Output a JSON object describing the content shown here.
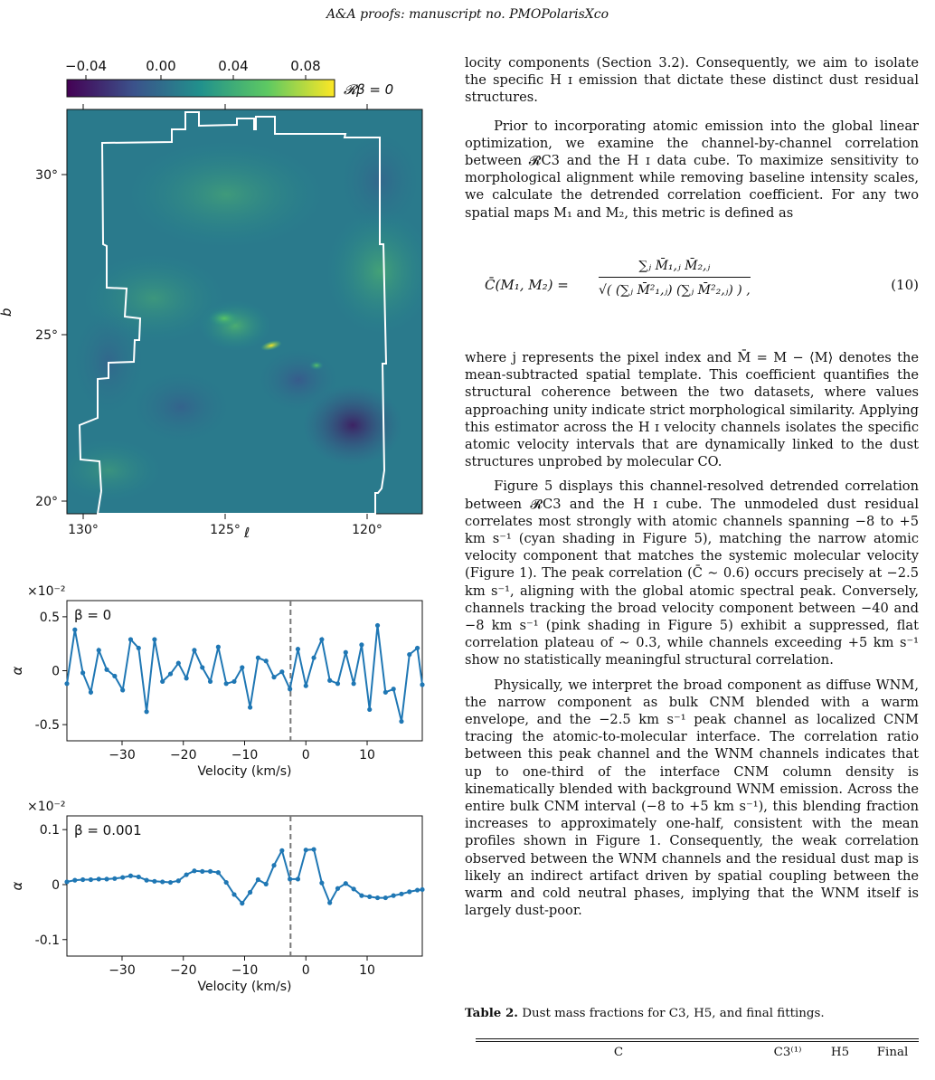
{
  "header": {
    "running_head": "A&A proofs: manuscript no. PMOPolarisXco"
  },
  "map_figure": {
    "colorbar_label": "𝓡β = 0",
    "colorbar_ticks": [
      "−0.04",
      "0.00",
      "0.04",
      "0.08"
    ],
    "xlabel": "ℓ",
    "ylabel": "b",
    "x_ticks": [
      "130°",
      "125°",
      "120°"
    ],
    "y_ticks": [
      "30°",
      "25°",
      "20°"
    ],
    "colormap": [
      "#440154",
      "#3b528b",
      "#21918c",
      "#5ec962",
      "#fde725"
    ]
  },
  "chart_data": [
    {
      "type": "line",
      "annotation": "β = 0",
      "xlabel": "Velocity (km/s)",
      "ylabel": "α",
      "scale_label": "×10⁻²",
      "xlim": [
        -39,
        19
      ],
      "ylim": [
        -0.65,
        0.65
      ],
      "x_ticks": [
        "−30",
        "−20",
        "−10",
        "0",
        "10"
      ],
      "y_ticks": [
        "0.5",
        "0",
        "-0.5"
      ],
      "dashed_line_x": -2.5,
      "line_color": "#1f77b4",
      "x": [
        -39,
        -37.7,
        -36.4,
        -35.1,
        -33.8,
        -32.5,
        -31.2,
        -29.9,
        -28.6,
        -27.3,
        -26,
        -24.7,
        -23.4,
        -22.1,
        -20.8,
        -19.5,
        -18.2,
        -16.9,
        -15.6,
        -14.3,
        -13,
        -11.7,
        -10.4,
        -9.1,
        -7.8,
        -6.5,
        -5.2,
        -3.9,
        -2.6,
        -1.3,
        0,
        1.3,
        2.6,
        3.9,
        5.2,
        6.5,
        7.8,
        9.1,
        10.4,
        11.7,
        13,
        14.3,
        15.6,
        16.9,
        18.2,
        19
      ],
      "y": [
        -0.12,
        0.38,
        -0.02,
        -0.2,
        0.19,
        0.01,
        -0.05,
        -0.18,
        0.29,
        0.21,
        -0.38,
        0.29,
        -0.1,
        -0.03,
        0.07,
        -0.07,
        0.19,
        0.03,
        -0.1,
        0.22,
        -0.12,
        -0.1,
        0.03,
        -0.34,
        0.12,
        0.09,
        -0.06,
        -0.01,
        -0.17,
        0.2,
        -0.14,
        0.12,
        0.29,
        -0.09,
        -0.12,
        0.17,
        -0.12,
        0.24,
        -0.36,
        0.42,
        -0.2,
        -0.17,
        -0.47,
        0.15,
        0.21,
        -0.13
      ]
    },
    {
      "type": "line",
      "annotation": "β = 0.001",
      "xlabel": "Velocity (km/s)",
      "ylabel": "α",
      "scale_label": "×10⁻²",
      "xlim": [
        -39,
        19
      ],
      "ylim": [
        -0.13,
        0.125
      ],
      "x_ticks": [
        "−30",
        "−20",
        "−10",
        "0",
        "10"
      ],
      "y_ticks": [
        "0.1",
        "0",
        "-0.1"
      ],
      "dashed_line_x": -2.5,
      "line_color": "#1f77b4",
      "x": [
        -39,
        -37.7,
        -36.4,
        -35.1,
        -33.8,
        -32.5,
        -31.2,
        -29.9,
        -28.6,
        -27.3,
        -26,
        -24.7,
        -23.4,
        -22.1,
        -20.8,
        -19.5,
        -18.2,
        -16.9,
        -15.6,
        -14.3,
        -13,
        -11.7,
        -10.4,
        -9.1,
        -7.8,
        -6.5,
        -5.2,
        -3.9,
        -2.6,
        -1.3,
        0,
        1.3,
        2.6,
        3.9,
        5.2,
        6.5,
        7.8,
        9.1,
        10.4,
        11.7,
        13,
        14.3,
        15.6,
        16.9,
        18.2,
        19
      ],
      "y": [
        0.005,
        0.008,
        0.009,
        0.009,
        0.01,
        0.01,
        0.011,
        0.013,
        0.016,
        0.014,
        0.008,
        0.006,
        0.005,
        0.004,
        0.007,
        0.018,
        0.025,
        0.024,
        0.024,
        0.022,
        0.004,
        -0.018,
        -0.034,
        -0.014,
        0.009,
        0.001,
        0.035,
        0.062,
        0.01,
        0.01,
        0.063,
        0.064,
        0.003,
        -0.033,
        -0.007,
        0.002,
        -0.008,
        -0.02,
        -0.022,
        -0.024,
        -0.024,
        -0.02,
        -0.017,
        -0.013,
        -0.01,
        -0.009
      ]
    }
  ],
  "text": {
    "p1": "locity components (Section 3.2). Consequently, we aim to isolate the specific H ɪ emission that dictate these distinct dust residual structures.",
    "p2": "Prior to incorporating atomic emission into the global linear optimization, we examine the channel-by-channel correlation between 𝓡C3 and the H ɪ data cube. To maximize sensitivity to morphological alignment while removing baseline intensity scales, we calculate the detrended correlation coefficient. For any two spatial maps M₁ and M₂, this metric is defined as",
    "eq_lhs": "C̄(M₁, M₂) =",
    "eq_num": "∑ⱼ M̄₁,ⱼ M̄₂,ⱼ",
    "eq_den": "√( (∑ⱼ M̄²₁,ⱼ) (∑ⱼ M̄²₂,ⱼ) ) ,",
    "eq_number": "(10)",
    "p3": "where j represents the pixel index and M̄ = M − ⟨M⟩ denotes the mean-subtracted spatial template. This coefficient quantifies the structural coherence between the two datasets, where values approaching unity indicate strict morphological similarity. Applying this estimator across the H ɪ velocity channels isolates the specific atomic velocity intervals that are dynamically linked to the dust structures unprobed by molecular CO.",
    "p4": "Figure 5 displays this channel-resolved detrended correlation between 𝓡C3 and the H ɪ cube. The unmodeled dust residual correlates most strongly with atomic channels spanning −8 to +5 km s⁻¹ (cyan shading in Figure 5), matching the narrow atomic velocity component that matches the systemic molecular velocity (Figure 1). The peak correlation (C̄ ∼ 0.6) occurs precisely at −2.5 km s⁻¹, aligning with the global atomic spectral peak. Conversely, channels tracking the broad velocity component between −40 and −8 km s⁻¹ (pink shading in Figure 5) exhibit a suppressed, flat correlation plateau of ∼ 0.3, while channels exceeding +5 km s⁻¹ show no statistically meaningful structural correlation.",
    "p5": "Physically, we interpret the broad component as diffuse WNM, the narrow component as bulk CNM blended with a warm envelope, and the −2.5 km s⁻¹ peak channel as localized CNM tracing the atomic-to-molecular interface. The correlation ratio between this peak channel and the WNM channels indicates that up to one-third of the interface CNM column density is kinematically blended with background WNM emission. Across the entire bulk CNM interval (−8 to +5 km s⁻¹), this blending fraction increases to approximately one-half, consistent with the mean profiles shown in Figure 1. Consequently, the weak correlation observed between the WNM channels and the residual dust map is likely an indirect artifact driven by spatial coupling between the warm and cold neutral phases, implying that the WNM itself is largely dust-poor.",
    "table_caption_bold": "Table 2.",
    "table_caption": " Dust mass fractions for C3, H5, and final fittings.",
    "table_col0": "C",
    "table_col1": "C3⁽¹⁾",
    "table_col2": "H5",
    "table_col3": "Final"
  }
}
